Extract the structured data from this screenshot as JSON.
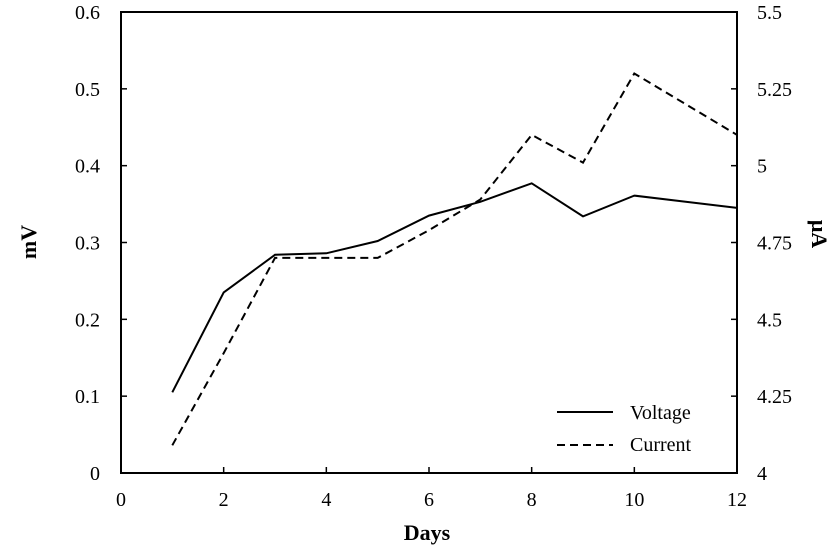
{
  "chart_data": {
    "type": "line",
    "title": "",
    "xlabel": "Days",
    "ylabel_left": "mV",
    "ylabel_right": "μA",
    "xlim": [
      0,
      12
    ],
    "ylim_left": [
      0,
      0.6
    ],
    "ylim_right": [
      4,
      5.5
    ],
    "x_ticks": [
      "0",
      "2",
      "4",
      "6",
      "8",
      "10",
      "12"
    ],
    "y_left_ticks": [
      "0",
      "0.1",
      "0.2",
      "0.3",
      "0.4",
      "0.5",
      "0.6"
    ],
    "y_right_ticks": [
      "4",
      "4.25",
      "4.5",
      "4.75",
      "5",
      "5.25",
      "5.5"
    ],
    "grid": false,
    "legend_position": "bottom-right",
    "series": [
      {
        "name": "Voltage",
        "axis": "left",
        "style": "solid",
        "color": "#000000",
        "x": [
          1,
          2,
          3,
          4,
          5,
          6,
          7,
          8,
          9,
          10,
          11,
          12
        ],
        "y": [
          0.105,
          0.235,
          0.284,
          0.286,
          0.302,
          0.335,
          0.353,
          0.377,
          0.334,
          0.361,
          0.353,
          0.345
        ]
      },
      {
        "name": "Current",
        "axis": "right",
        "style": "dashed",
        "color": "#000000",
        "x": [
          1,
          2,
          3,
          4,
          5,
          6,
          7,
          8,
          9,
          10,
          11,
          12
        ],
        "y": [
          4.09,
          4.39,
          4.7,
          4.7,
          4.7,
          4.79,
          4.89,
          5.1,
          5.01,
          5.3,
          5.2,
          5.1
        ]
      }
    ]
  }
}
